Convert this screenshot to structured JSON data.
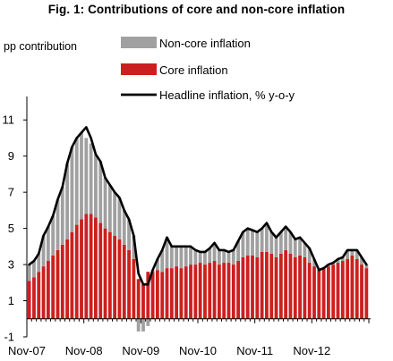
{
  "chart_data": {
    "type": "bar",
    "title": "Fig. 1: Contributions of core and non-core inflation",
    "ylabel": "pp contribution",
    "ylim": [
      -1,
      12
    ],
    "yticks": [
      -1,
      1,
      3,
      5,
      7,
      9,
      11
    ],
    "xtick_labels": [
      "Nov-07",
      "Nov-08",
      "Nov-09",
      "Nov-10",
      "Nov-11",
      "Nov-12"
    ],
    "grid": false,
    "legend_position": "top-right",
    "legend": [
      "Non-core inflation",
      "Core inflation",
      "Headline inflation, % y-o-y"
    ],
    "colors": {
      "noncore": "#a0a0a0",
      "core": "#cc1f1f",
      "headline": "#000000"
    },
    "series": [
      {
        "name": "Core inflation",
        "values": [
          2.1,
          2.3,
          2.6,
          2.9,
          3.2,
          3.5,
          3.8,
          4.1,
          4.4,
          4.8,
          5.2,
          5.5,
          5.8,
          5.8,
          5.6,
          5.3,
          5.0,
          4.8,
          4.6,
          4.4,
          4.1,
          3.8,
          3.3,
          2.2,
          1.9,
          2.6,
          2.6,
          2.7,
          2.6,
          2.8,
          2.8,
          2.9,
          2.8,
          2.9,
          3.0,
          3.0,
          3.1,
          3.0,
          3.1,
          3.2,
          3.0,
          3.1,
          3.1,
          3.0,
          3.2,
          3.4,
          3.5,
          3.5,
          3.4,
          3.7,
          3.7,
          3.6,
          3.4,
          3.6,
          3.8,
          3.6,
          3.4,
          3.5,
          3.4,
          3.1,
          2.9,
          2.7,
          2.8,
          2.9,
          3.0,
          3.1,
          3.2,
          3.3,
          3.5,
          3.3,
          3.0,
          2.8
        ]
      },
      {
        "name": "Non-core inflation",
        "values": [
          0.9,
          0.9,
          1.0,
          1.7,
          1.9,
          2.2,
          2.8,
          3.2,
          4.2,
          4.7,
          4.8,
          4.8,
          4.2,
          3.9,
          3.5,
          3.4,
          2.8,
          2.6,
          2.4,
          2.3,
          1.9,
          1.7,
          1.3,
          -0.7,
          -0.7,
          -0.4,
          0.1,
          0.6,
          1.2,
          1.7,
          1.2,
          1.1,
          1.2,
          1.1,
          1.0,
          0.8,
          0.6,
          0.7,
          0.8,
          1.0,
          0.8,
          0.7,
          0.6,
          0.8,
          1.1,
          1.4,
          1.5,
          1.4,
          1.4,
          1.3,
          1.6,
          1.2,
          1.1,
          1.2,
          1.3,
          1.2,
          1.0,
          1.0,
          0.8,
          0.8,
          0.4,
          0.0,
          0.0,
          0.1,
          0.1,
          0.2,
          0.2,
          0.5,
          0.3,
          0.5,
          0.4,
          0.2
        ]
      },
      {
        "name": "Headline inflation, % y-o-y",
        "values": [
          3.0,
          3.2,
          3.6,
          4.6,
          5.1,
          5.7,
          6.6,
          7.3,
          8.6,
          9.5,
          10.0,
          10.3,
          10.6,
          10.0,
          9.1,
          8.7,
          7.8,
          7.4,
          7.0,
          6.7,
          6.0,
          5.5,
          4.6,
          2.5,
          1.9,
          1.9,
          2.7,
          3.3,
          3.8,
          4.5,
          4.0,
          4.0,
          4.0,
          4.0,
          4.0,
          3.8,
          3.7,
          3.7,
          3.9,
          4.2,
          3.8,
          3.8,
          3.7,
          3.8,
          4.3,
          4.8,
          5.0,
          4.9,
          4.8,
          5.0,
          5.3,
          4.8,
          4.5,
          4.8,
          5.1,
          4.8,
          4.4,
          4.5,
          4.2,
          3.9,
          3.3,
          2.7,
          2.8,
          3.0,
          3.1,
          3.3,
          3.4,
          3.8,
          3.8,
          3.8,
          3.4,
          3.0
        ]
      }
    ]
  }
}
